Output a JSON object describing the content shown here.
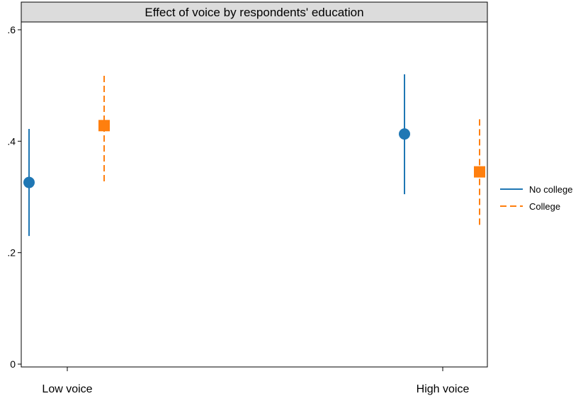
{
  "chart_data": {
    "type": "scatter",
    "title": "Effect of voice by respondents' education",
    "xlabel": "",
    "ylabel": "",
    "categories": [
      "Low voice",
      "High voice"
    ],
    "ylim": [
      0,
      0.6
    ],
    "y_ticks": [
      0,
      0.2,
      0.4,
      0.6
    ],
    "y_tick_labels": [
      "0",
      ".2",
      ".4",
      ".6"
    ],
    "grid": false,
    "legend_position": "right",
    "series": [
      {
        "name": "No college",
        "color": "#1f77b4",
        "marker": "circle",
        "line_style": "solid",
        "points": [
          {
            "category": "Low voice",
            "value": 0.326,
            "ci_low": 0.23,
            "ci_high": 0.422
          },
          {
            "category": "High voice",
            "value": 0.413,
            "ci_low": 0.305,
            "ci_high": 0.52
          }
        ]
      },
      {
        "name": "College",
        "color": "#ff7f0e",
        "marker": "square",
        "line_style": "dashed",
        "points": [
          {
            "category": "Low voice",
            "value": 0.428,
            "ci_low": 0.328,
            "ci_high": 0.522
          },
          {
            "category": "High voice",
            "value": 0.345,
            "ci_low": 0.25,
            "ci_high": 0.442
          }
        ]
      }
    ]
  }
}
